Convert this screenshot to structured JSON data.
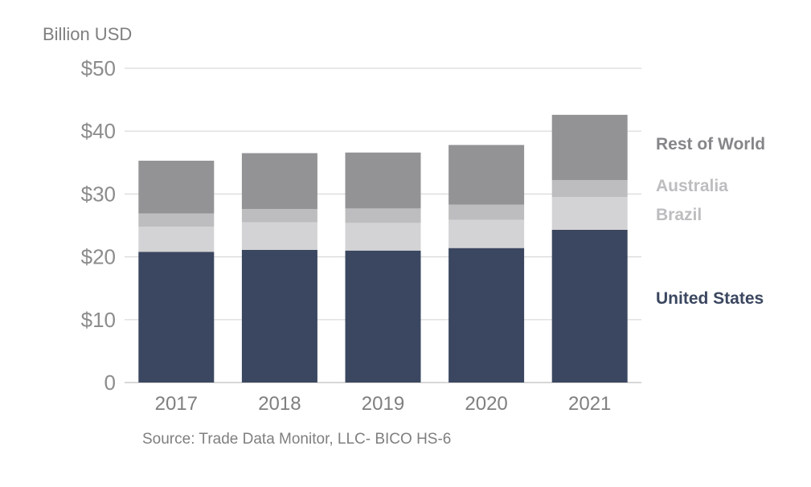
{
  "chart_data": {
    "type": "bar",
    "stacked": true,
    "unit_label": "Billion USD",
    "source": "Source: Trade Data Monitor, LLC- BICO HS-6",
    "categories": [
      "2017",
      "2018",
      "2019",
      "2020",
      "2021"
    ],
    "ylim": [
      0,
      50
    ],
    "y_ticks": [
      {
        "value": 0,
        "label": "0"
      },
      {
        "value": 10,
        "label": "$10"
      },
      {
        "value": 20,
        "label": "$20"
      },
      {
        "value": 30,
        "label": "$30"
      },
      {
        "value": 40,
        "label": "$40"
      },
      {
        "value": 50,
        "label": "$50"
      }
    ],
    "grid": true,
    "legend_position": "right",
    "series": [
      {
        "name": "United States",
        "color": "#3b4760",
        "values": [
          20.8,
          21.1,
          21.0,
          21.4,
          24.3
        ]
      },
      {
        "name": "Brazil",
        "color": "#d3d3d5",
        "values": [
          4.0,
          4.4,
          4.4,
          4.5,
          5.2
        ]
      },
      {
        "name": "Australia",
        "color": "#bdbdbf",
        "values": [
          2.1,
          2.1,
          2.3,
          2.4,
          2.7
        ]
      },
      {
        "name": "Rest of World",
        "color": "#939396",
        "values": [
          8.4,
          8.9,
          8.9,
          9.5,
          10.4
        ]
      }
    ],
    "legend": [
      {
        "name": "Rest of World",
        "color": "#86868a"
      },
      {
        "name": "Australia",
        "color": "#bdbdbf"
      },
      {
        "name": "Brazil",
        "color": "#bdbdbf"
      },
      {
        "name": "United States",
        "color": "#3b4760"
      }
    ]
  }
}
